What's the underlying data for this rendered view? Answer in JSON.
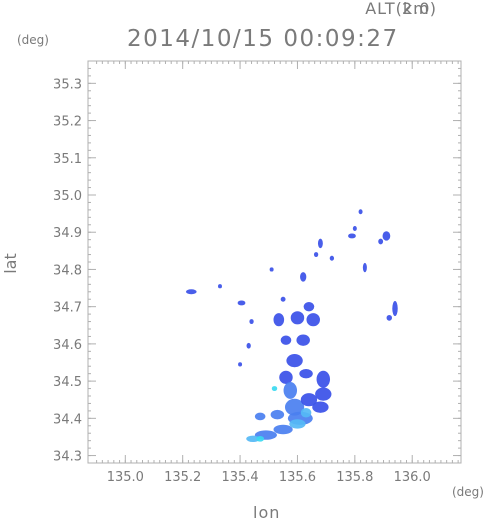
{
  "header": {
    "alt_label": "ALT(km)",
    "alt_value": "2.0",
    "timestamp": "2014/10/15 00:09:27",
    "y_unit": "(deg)",
    "x_unit": "(deg)"
  },
  "axes": {
    "xlabel": "lon",
    "ylabel": "lat",
    "xlim": [
      134.87,
      136.17
    ],
    "ylim": [
      34.28,
      35.36
    ],
    "xticks": [
      "135.0",
      "135.2",
      "135.4",
      "135.6",
      "135.8",
      "136.0"
    ],
    "yticks": [
      "34.3",
      "34.4",
      "34.5",
      "34.6",
      "34.7",
      "34.8",
      "34.9",
      "35.0",
      "35.1",
      "35.2",
      "35.3"
    ]
  },
  "colors": {
    "frame": "#b0b0b0",
    "echo_main": "#3a50e8",
    "echo_mid": "#4a7ff0",
    "echo_light": "#55b8f5",
    "echo_cyan": "#39d9f0"
  },
  "echoes": [
    {
      "lon": 135.23,
      "lat": 34.74,
      "w": 0.03,
      "h": 0.008,
      "level": "main"
    },
    {
      "lon": 135.33,
      "lat": 34.755,
      "w": 0.006,
      "h": 0.006,
      "level": "main"
    },
    {
      "lon": 135.405,
      "lat": 34.71,
      "w": 0.02,
      "h": 0.008,
      "level": "main"
    },
    {
      "lon": 135.51,
      "lat": 34.8,
      "w": 0.006,
      "h": 0.006,
      "level": "main"
    },
    {
      "lon": 135.55,
      "lat": 34.72,
      "w": 0.01,
      "h": 0.008,
      "level": "main"
    },
    {
      "lon": 135.535,
      "lat": 34.665,
      "w": 0.03,
      "h": 0.03,
      "level": "main"
    },
    {
      "lon": 135.6,
      "lat": 34.67,
      "w": 0.04,
      "h": 0.03,
      "level": "main"
    },
    {
      "lon": 135.64,
      "lat": 34.7,
      "w": 0.03,
      "h": 0.02,
      "level": "main"
    },
    {
      "lon": 135.655,
      "lat": 34.665,
      "w": 0.04,
      "h": 0.03,
      "level": "main"
    },
    {
      "lon": 135.44,
      "lat": 34.66,
      "w": 0.008,
      "h": 0.008,
      "level": "main"
    },
    {
      "lon": 135.43,
      "lat": 34.595,
      "w": 0.008,
      "h": 0.01,
      "level": "main"
    },
    {
      "lon": 135.56,
      "lat": 34.61,
      "w": 0.03,
      "h": 0.02,
      "level": "main"
    },
    {
      "lon": 135.62,
      "lat": 34.61,
      "w": 0.04,
      "h": 0.025,
      "level": "main"
    },
    {
      "lon": 135.59,
      "lat": 34.555,
      "w": 0.05,
      "h": 0.03,
      "level": "main"
    },
    {
      "lon": 135.56,
      "lat": 34.51,
      "w": 0.04,
      "h": 0.03,
      "level": "main"
    },
    {
      "lon": 135.63,
      "lat": 34.52,
      "w": 0.04,
      "h": 0.02,
      "level": "main"
    },
    {
      "lon": 135.69,
      "lat": 34.505,
      "w": 0.04,
      "h": 0.04,
      "level": "main"
    },
    {
      "lon": 135.69,
      "lat": 34.465,
      "w": 0.05,
      "h": 0.03,
      "level": "main"
    },
    {
      "lon": 135.575,
      "lat": 34.475,
      "w": 0.04,
      "h": 0.04,
      "level": "mid"
    },
    {
      "lon": 135.52,
      "lat": 34.48,
      "w": 0.012,
      "h": 0.008,
      "level": "cyan"
    },
    {
      "lon": 135.59,
      "lat": 34.43,
      "w": 0.06,
      "h": 0.04,
      "level": "mid"
    },
    {
      "lon": 135.64,
      "lat": 34.45,
      "w": 0.05,
      "h": 0.03,
      "level": "main"
    },
    {
      "lon": 135.68,
      "lat": 34.43,
      "w": 0.05,
      "h": 0.025,
      "level": "main"
    },
    {
      "lon": 135.53,
      "lat": 34.41,
      "w": 0.04,
      "h": 0.02,
      "level": "mid"
    },
    {
      "lon": 135.47,
      "lat": 34.405,
      "w": 0.03,
      "h": 0.015,
      "level": "mid"
    },
    {
      "lon": 135.61,
      "lat": 34.4,
      "w": 0.08,
      "h": 0.03,
      "level": "mid"
    },
    {
      "lon": 135.63,
      "lat": 34.415,
      "w": 0.03,
      "h": 0.02,
      "level": "light"
    },
    {
      "lon": 135.55,
      "lat": 34.37,
      "w": 0.06,
      "h": 0.02,
      "level": "mid"
    },
    {
      "lon": 135.6,
      "lat": 34.385,
      "w": 0.05,
      "h": 0.02,
      "level": "light"
    },
    {
      "lon": 135.49,
      "lat": 34.355,
      "w": 0.07,
      "h": 0.02,
      "level": "mid"
    },
    {
      "lon": 135.445,
      "lat": 34.345,
      "w": 0.04,
      "h": 0.012,
      "level": "light"
    },
    {
      "lon": 135.47,
      "lat": 34.345,
      "w": 0.02,
      "h": 0.01,
      "level": "cyan"
    },
    {
      "lon": 135.4,
      "lat": 34.545,
      "w": 0.006,
      "h": 0.006,
      "level": "main"
    },
    {
      "lon": 135.68,
      "lat": 34.87,
      "w": 0.01,
      "h": 0.02,
      "level": "main"
    },
    {
      "lon": 135.665,
      "lat": 34.84,
      "w": 0.008,
      "h": 0.008,
      "level": "main"
    },
    {
      "lon": 135.62,
      "lat": 34.78,
      "w": 0.015,
      "h": 0.02,
      "level": "main"
    },
    {
      "lon": 135.72,
      "lat": 34.83,
      "w": 0.008,
      "h": 0.008,
      "level": "main"
    },
    {
      "lon": 135.79,
      "lat": 34.89,
      "w": 0.02,
      "h": 0.008,
      "level": "main"
    },
    {
      "lon": 135.82,
      "lat": 34.955,
      "w": 0.006,
      "h": 0.008,
      "level": "main"
    },
    {
      "lon": 135.8,
      "lat": 34.91,
      "w": 0.006,
      "h": 0.008,
      "level": "main"
    },
    {
      "lon": 135.91,
      "lat": 34.89,
      "w": 0.02,
      "h": 0.02,
      "level": "main"
    },
    {
      "lon": 135.89,
      "lat": 34.875,
      "w": 0.01,
      "h": 0.01,
      "level": "main"
    },
    {
      "lon": 135.835,
      "lat": 34.805,
      "w": 0.006,
      "h": 0.02,
      "level": "main"
    },
    {
      "lon": 135.94,
      "lat": 34.695,
      "w": 0.012,
      "h": 0.035,
      "level": "main"
    },
    {
      "lon": 135.92,
      "lat": 34.67,
      "w": 0.012,
      "h": 0.01,
      "level": "main"
    }
  ]
}
